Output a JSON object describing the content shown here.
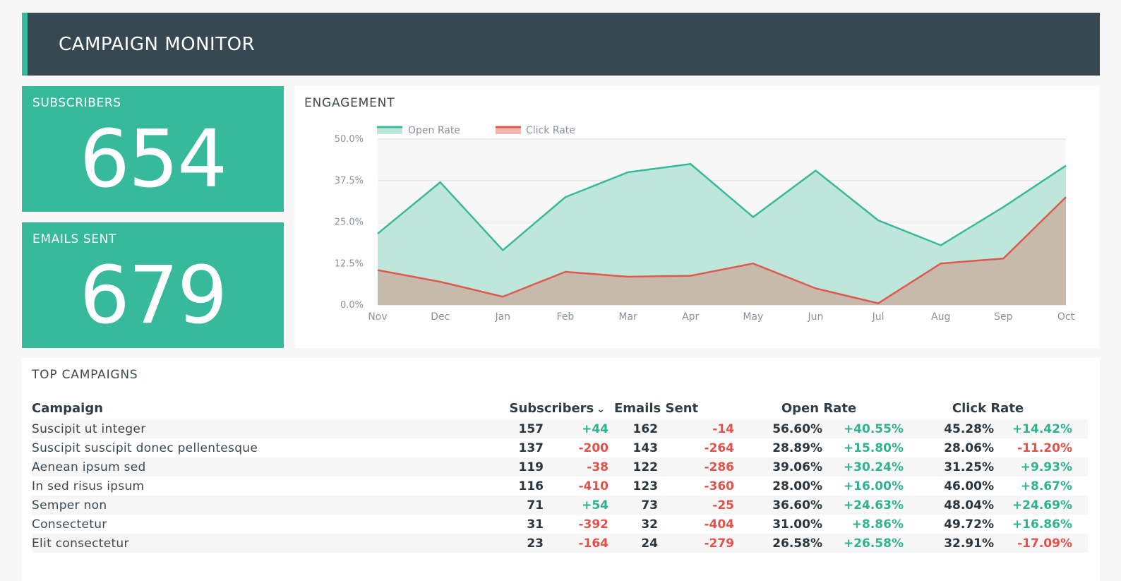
{
  "header": {
    "title": "CAMPAIGN MONITOR"
  },
  "colors": {
    "accent": "#37b99b",
    "header_bg": "#374853",
    "positive": "#2fb38f",
    "negative": "#e0524a",
    "open_line": "#37b99b",
    "click_line": "#df5a4e"
  },
  "kpis": {
    "subscribers": {
      "label": "SUBSCRIBERS",
      "value": "654"
    },
    "emails_sent": {
      "label": "EMAILS SENT",
      "value": "679"
    }
  },
  "engagement": {
    "title": "ENGAGEMENT"
  },
  "chart_data": {
    "type": "area",
    "title": "ENGAGEMENT",
    "categories": [
      "Nov",
      "Dec",
      "Jan",
      "Feb",
      "Mar",
      "Apr",
      "May",
      "Jun",
      "Jul",
      "Aug",
      "Sep",
      "Oct"
    ],
    "series": [
      {
        "name": "Open Rate",
        "values": [
          21.5,
          37.0,
          16.5,
          32.5,
          40.0,
          42.5,
          26.5,
          40.5,
          25.5,
          18.0,
          29.5,
          42.0
        ]
      },
      {
        "name": "Click Rate",
        "values": [
          10.5,
          7.0,
          2.5,
          10.0,
          8.5,
          8.8,
          12.5,
          5.0,
          0.5,
          12.5,
          14.0,
          32.5
        ]
      }
    ],
    "y_ticks": [
      "0.0%",
      "12.5%",
      "25.0%",
      "37.5%",
      "50.0%"
    ],
    "ylim": [
      0,
      50
    ],
    "legend": "top-left",
    "grid": true
  },
  "campaigns": {
    "title": "TOP CAMPAIGNS",
    "headers": {
      "campaign": "Campaign",
      "subscribers": "Subscribers",
      "emails_sent": "Emails Sent",
      "open_rate": "Open Rate",
      "click_rate": "Click Rate"
    },
    "rows": [
      {
        "name": "Suscipit ut integer",
        "subs": "157",
        "subs_d": "+44",
        "sent": "162",
        "sent_d": "-14",
        "open": "56.60%",
        "open_d": "+40.55%",
        "click": "45.28%",
        "click_d": "+14.42%"
      },
      {
        "name": "Suscipit suscipit donec pellentesque",
        "subs": "137",
        "subs_d": "-200",
        "sent": "143",
        "sent_d": "-264",
        "open": "28.89%",
        "open_d": "+15.80%",
        "click": "28.06%",
        "click_d": "-11.20%"
      },
      {
        "name": "Aenean ipsum sed",
        "subs": "119",
        "subs_d": "-38",
        "sent": "122",
        "sent_d": "-286",
        "open": "39.06%",
        "open_d": "+30.24%",
        "click": "31.25%",
        "click_d": "+9.93%"
      },
      {
        "name": "In sed risus ipsum",
        "subs": "116",
        "subs_d": "-410",
        "sent": "123",
        "sent_d": "-360",
        "open": "28.00%",
        "open_d": "+16.00%",
        "click": "46.00%",
        "click_d": "+8.67%"
      },
      {
        "name": "Semper non",
        "subs": "71",
        "subs_d": "+54",
        "sent": "73",
        "sent_d": "-25",
        "open": "36.60%",
        "open_d": "+24.63%",
        "click": "48.04%",
        "click_d": "+24.69%"
      },
      {
        "name": "Consectetur",
        "subs": "31",
        "subs_d": "-392",
        "sent": "32",
        "sent_d": "-404",
        "open": "31.00%",
        "open_d": "+8.86%",
        "click": "49.72%",
        "click_d": "+16.86%"
      },
      {
        "name": "Elit consectetur",
        "subs": "23",
        "subs_d": "-164",
        "sent": "24",
        "sent_d": "-279",
        "open": "26.58%",
        "open_d": "+26.58%",
        "click": "32.91%",
        "click_d": "-17.09%"
      }
    ]
  }
}
